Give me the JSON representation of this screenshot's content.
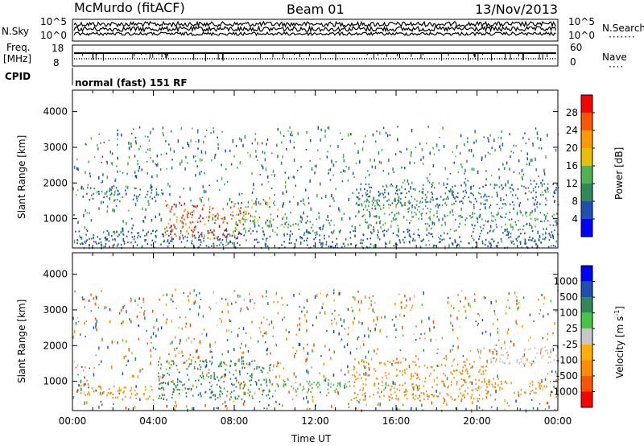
{
  "header": {
    "station": "McMurdo (fitACF)",
    "beam": "Beam 01",
    "date": "13/Nov/2013"
  },
  "strip": {
    "nsky_label": "N.Sky",
    "nsearch_label": "N.Search",
    "left_ticks": [
      "10^5",
      "10^0"
    ],
    "right_ticks": [
      "10^5",
      "10^0"
    ],
    "freq_label_1": "Freq.",
    "freq_label_2": "[MHz]",
    "freq_ticks": [
      "18",
      "8"
    ],
    "nave_label": "Nave",
    "nave_ticks": [
      "60",
      "0"
    ],
    "cpid_label": "CPID",
    "cpid_value": "normal (fast) 151 RF"
  },
  "colors": {
    "power": [
      "#0000ff",
      "#1f4fb0",
      "#2e8b57",
      "#4fb34f",
      "#e8c000",
      "#ff9900",
      "#ff5500",
      "#ff0000"
    ],
    "velocity": [
      "#ff0000",
      "#ff5500",
      "#ff8c00",
      "#ffb000",
      "#c8c8c8",
      "#44c844",
      "#2e8b57",
      "#1f4fb0",
      "#0000ff"
    ],
    "ground_scatter": "#b4b4b4"
  },
  "chart_data": [
    {
      "type": "heatmap",
      "panel": "power",
      "ylabel": "Slant Range [km]",
      "yticks": [
        "4000",
        "3000",
        "2000",
        "1000"
      ],
      "ylim": [
        180,
        4600
      ],
      "xlim": [
        0,
        24
      ],
      "xticks": [
        "00:00",
        "04:00",
        "08:00",
        "12:00",
        "16:00",
        "20:00",
        "00:00"
      ],
      "colorbar_label": "Power [dB]",
      "colorbar_ticks": [
        "28",
        "24",
        "20",
        "16",
        "12",
        "8",
        "4"
      ],
      "colorbar_range": [
        0,
        30
      ],
      "regions": [
        {
          "t0": 0.1,
          "t1": 24.0,
          "r0": 200,
          "r1": 700,
          "value": 6
        },
        {
          "t0": 0.4,
          "t1": 4.5,
          "r0": 1500,
          "r1": 1900,
          "value": 8
        },
        {
          "t0": 4.5,
          "t1": 8.5,
          "r0": 450,
          "r1": 1500,
          "value": 26
        },
        {
          "t0": 8.0,
          "t1": 10.5,
          "r0": 700,
          "r1": 1600,
          "value": 14
        },
        {
          "t0": 10.5,
          "t1": 13.0,
          "r0": 600,
          "r1": 1000,
          "value": 10
        },
        {
          "t0": 14.0,
          "t1": 18.5,
          "r0": 700,
          "r1": 1600,
          "value": 12
        },
        {
          "t0": 18.5,
          "t1": 24.0,
          "r0": 700,
          "r1": 1200,
          "value": 10
        },
        {
          "t0": 14.0,
          "t1": 24.0,
          "r0": 1400,
          "r1": 2000,
          "value": 7
        }
      ]
    },
    {
      "type": "heatmap",
      "panel": "velocity",
      "ylabel": "Slant Range [km]",
      "yticks": [
        "4000",
        "3000",
        "2000",
        "1000"
      ],
      "ylim": [
        180,
        4600
      ],
      "xlim": [
        0,
        24
      ],
      "xticks": [
        "00:00",
        "04:00",
        "08:00",
        "12:00",
        "16:00",
        "20:00",
        "00:00"
      ],
      "xlabel": "Time UT",
      "colorbar_label": "Velocity [m s-1]",
      "colorbar_ticks": [
        "1000",
        "500",
        "100",
        "25",
        "-25",
        "-100",
        "-500",
        "-1000"
      ],
      "regions": [
        {
          "t0": 0.3,
          "t1": 4.0,
          "r0": 500,
          "r1": 900,
          "value": -300
        },
        {
          "t0": 4.2,
          "t1": 9.8,
          "r0": 500,
          "r1": 1600,
          "value": 300
        },
        {
          "t0": 9.8,
          "t1": 13.8,
          "r0": 700,
          "r1": 1100,
          "value": 60
        },
        {
          "t0": 13.8,
          "t1": 20.5,
          "r0": 500,
          "r1": 1650,
          "value": -300
        },
        {
          "t0": 20.5,
          "t1": 24.0,
          "r0": 700,
          "r1": 1100,
          "value": -200
        },
        {
          "t0": 20.0,
          "t1": 24.0,
          "r0": 1500,
          "r1": 2000,
          "value": 0
        }
      ]
    }
  ]
}
